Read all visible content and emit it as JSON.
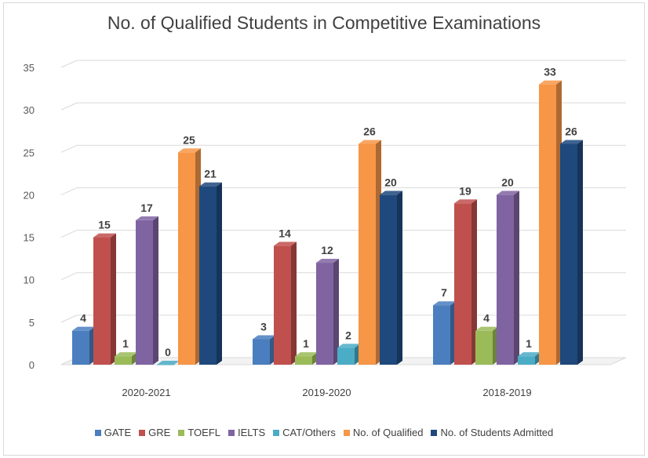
{
  "chart_data": {
    "type": "bar",
    "title": "No. of Qualified Students in Competitive Examinations",
    "categories": [
      "2020-2021",
      "2019-2020",
      "2018-2019"
    ],
    "series": [
      {
        "name": "GATE",
        "color": "#4a7ebf",
        "values": [
          4,
          3,
          7
        ]
      },
      {
        "name": "GRE",
        "color": "#c0504d",
        "values": [
          15,
          14,
          19
        ]
      },
      {
        "name": "TOEFL",
        "color": "#9bbb59",
        "values": [
          1,
          1,
          4
        ]
      },
      {
        "name": "IELTS",
        "color": "#8064a2",
        "values": [
          17,
          12,
          20
        ]
      },
      {
        "name": "CAT/Others",
        "color": "#4bacc6",
        "values": [
          0,
          2,
          1
        ]
      },
      {
        "name": "No. of Qualified",
        "color": "#f79646",
        "values": [
          25,
          26,
          33
        ]
      },
      {
        "name": "No. of Students Admitted",
        "color": "#1f497d",
        "values": [
          21,
          20,
          26
        ]
      }
    ],
    "ylim": [
      0,
      35
    ],
    "yticks": [
      "0",
      "5",
      "10",
      "15",
      "20",
      "25",
      "30",
      "35"
    ],
    "grid": true,
    "legend": "bottom",
    "xlabel": "",
    "ylabel": ""
  }
}
